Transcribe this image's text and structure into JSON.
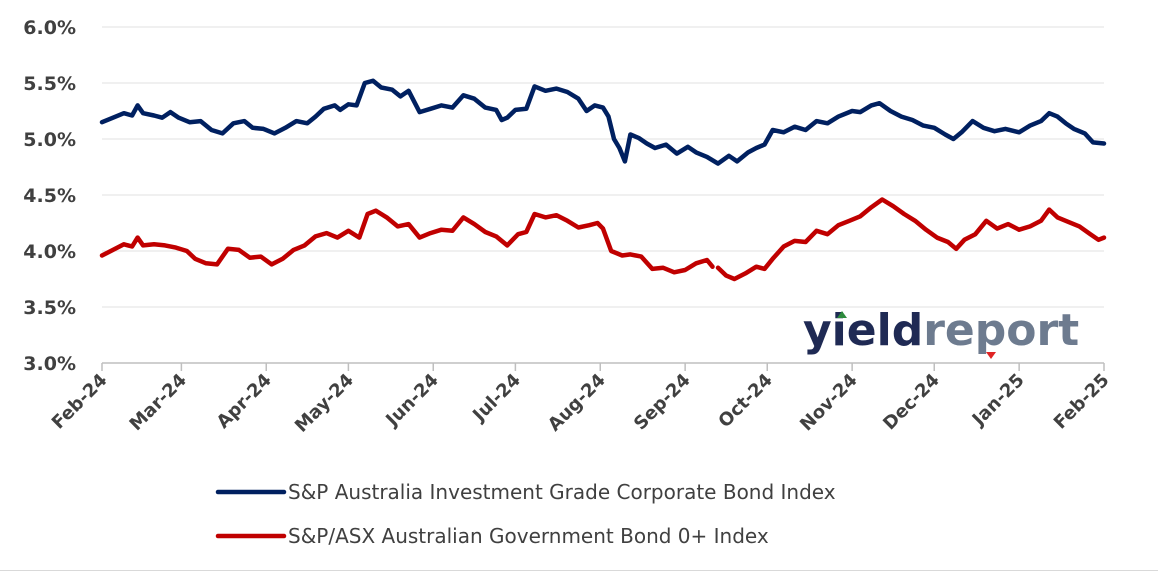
{
  "chart_data": {
    "type": "line",
    "title": "",
    "xlabel": "",
    "ylabel": "",
    "ylim": [
      3.0,
      6.0
    ],
    "y_ticks": [
      "6.0%",
      "5.5%",
      "5.0%",
      "4.5%",
      "4.0%",
      "3.5%",
      "3.0%"
    ],
    "y_tick_values": [
      6.0,
      5.5,
      5.0,
      4.5,
      4.0,
      3.5,
      3.0
    ],
    "x_ticks": [
      "Feb-24",
      "Mar-24",
      "Apr-24",
      "May-24",
      "Jun-24",
      "Jul-24",
      "Aug-24",
      "Sep-24",
      "Oct-24",
      "Nov-24",
      "Dec-24",
      "Jan-25",
      "Feb-25"
    ],
    "x_tick_dates": [
      "2024-02-01",
      "2024-03-01",
      "2024-04-01",
      "2024-05-01",
      "2024-06-01",
      "2024-07-01",
      "2024-08-01",
      "2024-09-01",
      "2024-10-01",
      "2024-11-01",
      "2024-12-01",
      "2025-01-01",
      "2025-02-01"
    ],
    "xlim": [
      "2024-02-01",
      "2025-02-01"
    ],
    "grid": "horizontal",
    "legend_position": "bottom",
    "series": [
      {
        "name": "S&P Australia Investment Grade Corporate Bond Index",
        "color": "#002060",
        "points": [
          [
            "2024-02-01",
            5.15
          ],
          [
            "2024-02-05",
            5.19
          ],
          [
            "2024-02-09",
            5.23
          ],
          [
            "2024-02-12",
            5.21
          ],
          [
            "2024-02-14",
            5.3
          ],
          [
            "2024-02-16",
            5.23
          ],
          [
            "2024-02-20",
            5.21
          ],
          [
            "2024-02-23",
            5.19
          ],
          [
            "2024-02-26",
            5.24
          ],
          [
            "2024-02-29",
            5.19
          ],
          [
            "2024-03-04",
            5.15
          ],
          [
            "2024-03-08",
            5.16
          ],
          [
            "2024-03-12",
            5.08
          ],
          [
            "2024-03-16",
            5.05
          ],
          [
            "2024-03-20",
            5.14
          ],
          [
            "2024-03-24",
            5.16
          ],
          [
            "2024-03-27",
            5.1
          ],
          [
            "2024-03-31",
            5.09
          ],
          [
            "2024-04-04",
            5.05
          ],
          [
            "2024-04-08",
            5.1
          ],
          [
            "2024-04-12",
            5.16
          ],
          [
            "2024-04-16",
            5.14
          ],
          [
            "2024-04-19",
            5.2
          ],
          [
            "2024-04-22",
            5.27
          ],
          [
            "2024-04-26",
            5.3
          ],
          [
            "2024-04-28",
            5.26
          ],
          [
            "2024-05-01",
            5.31
          ],
          [
            "2024-05-04",
            5.3
          ],
          [
            "2024-05-07",
            5.5
          ],
          [
            "2024-05-10",
            5.52
          ],
          [
            "2024-05-13",
            5.46
          ],
          [
            "2024-05-17",
            5.44
          ],
          [
            "2024-05-20",
            5.38
          ],
          [
            "2024-05-23",
            5.43
          ],
          [
            "2024-05-27",
            5.24
          ],
          [
            "2024-05-31",
            5.27
          ],
          [
            "2024-06-04",
            5.3
          ],
          [
            "2024-06-08",
            5.28
          ],
          [
            "2024-06-12",
            5.39
          ],
          [
            "2024-06-16",
            5.36
          ],
          [
            "2024-06-20",
            5.28
          ],
          [
            "2024-06-24",
            5.26
          ],
          [
            "2024-06-26",
            5.17
          ],
          [
            "2024-06-28",
            5.19
          ],
          [
            "2024-07-01",
            5.26
          ],
          [
            "2024-07-05",
            5.27
          ],
          [
            "2024-07-08",
            5.47
          ],
          [
            "2024-07-12",
            5.43
          ],
          [
            "2024-07-16",
            5.45
          ],
          [
            "2024-07-20",
            5.42
          ],
          [
            "2024-07-24",
            5.36
          ],
          [
            "2024-07-27",
            5.25
          ],
          [
            "2024-07-30",
            5.3
          ],
          [
            "2024-08-02",
            5.28
          ],
          [
            "2024-08-04",
            5.2
          ],
          [
            "2024-08-06",
            5.0
          ],
          [
            "2024-08-08",
            4.92
          ],
          [
            "2024-08-10",
            4.8
          ],
          [
            "2024-08-12",
            5.04
          ],
          [
            "2024-08-15",
            5.01
          ],
          [
            "2024-08-18",
            4.96
          ],
          [
            "2024-08-21",
            4.92
          ],
          [
            "2024-08-25",
            4.95
          ],
          [
            "2024-08-29",
            4.87
          ],
          [
            "2024-09-02",
            4.93
          ],
          [
            "2024-09-05",
            4.88
          ],
          [
            "2024-09-09",
            4.84
          ],
          [
            "2024-09-13",
            4.78
          ],
          [
            "2024-09-17",
            4.85
          ],
          [
            "2024-09-20",
            4.8
          ],
          [
            "2024-09-24",
            4.88
          ],
          [
            "2024-09-27",
            4.92
          ],
          [
            "2024-09-30",
            4.95
          ],
          [
            "2024-10-03",
            5.08
          ],
          [
            "2024-10-07",
            5.06
          ],
          [
            "2024-10-11",
            5.11
          ],
          [
            "2024-10-15",
            5.08
          ],
          [
            "2024-10-19",
            5.16
          ],
          [
            "2024-10-23",
            5.14
          ],
          [
            "2024-10-27",
            5.2
          ],
          [
            "2024-11-01",
            5.25
          ],
          [
            "2024-11-04",
            5.24
          ],
          [
            "2024-11-08",
            5.3
          ],
          [
            "2024-11-11",
            5.32
          ],
          [
            "2024-11-15",
            5.25
          ],
          [
            "2024-11-19",
            5.2
          ],
          [
            "2024-11-23",
            5.17
          ],
          [
            "2024-11-27",
            5.12
          ],
          [
            "2024-12-01",
            5.1
          ],
          [
            "2024-12-05",
            5.04
          ],
          [
            "2024-12-08",
            5.0
          ],
          [
            "2024-12-11",
            5.06
          ],
          [
            "2024-12-15",
            5.16
          ],
          [
            "2024-12-19",
            5.1
          ],
          [
            "2024-12-23",
            5.07
          ],
          [
            "2024-12-27",
            5.09
          ],
          [
            "2025-01-01",
            5.06
          ],
          [
            "2025-01-05",
            5.12
          ],
          [
            "2025-01-09",
            5.16
          ],
          [
            "2025-01-12",
            5.23
          ],
          [
            "2025-01-15",
            5.2
          ],
          [
            "2025-01-18",
            5.14
          ],
          [
            "2025-01-21",
            5.09
          ],
          [
            "2025-01-25",
            5.05
          ],
          [
            "2025-01-28",
            4.97
          ],
          [
            "2025-02-01",
            4.96
          ]
        ]
      },
      {
        "name": "S&P/ASX Australian Government Bond 0+ Index",
        "color": "#c00000",
        "points": [
          [
            "2024-02-01",
            3.96
          ],
          [
            "2024-02-05",
            4.01
          ],
          [
            "2024-02-09",
            4.06
          ],
          [
            "2024-02-12",
            4.04
          ],
          [
            "2024-02-14",
            4.12
          ],
          [
            "2024-02-16",
            4.05
          ],
          [
            "2024-02-20",
            4.06
          ],
          [
            "2024-02-24",
            4.05
          ],
          [
            "2024-02-28",
            4.03
          ],
          [
            "2024-03-03",
            4.0
          ],
          [
            "2024-03-06",
            3.93
          ],
          [
            "2024-03-10",
            3.89
          ],
          [
            "2024-03-14",
            3.88
          ],
          [
            "2024-03-18",
            4.02
          ],
          [
            "2024-03-22",
            4.01
          ],
          [
            "2024-03-26",
            3.94
          ],
          [
            "2024-03-30",
            3.95
          ],
          [
            "2024-04-03",
            3.88
          ],
          [
            "2024-04-07",
            3.93
          ],
          [
            "2024-04-11",
            4.01
          ],
          [
            "2024-04-15",
            4.05
          ],
          [
            "2024-04-19",
            4.13
          ],
          [
            "2024-04-23",
            4.16
          ],
          [
            "2024-04-27",
            4.12
          ],
          [
            "2024-05-01",
            4.18
          ],
          [
            "2024-05-05",
            4.12
          ],
          [
            "2024-05-08",
            4.33
          ],
          [
            "2024-05-11",
            4.36
          ],
          [
            "2024-05-15",
            4.3
          ],
          [
            "2024-05-19",
            4.22
          ],
          [
            "2024-05-23",
            4.24
          ],
          [
            "2024-05-27",
            4.12
          ],
          [
            "2024-05-31",
            4.16
          ],
          [
            "2024-06-04",
            4.19
          ],
          [
            "2024-06-08",
            4.18
          ],
          [
            "2024-06-12",
            4.3
          ],
          [
            "2024-06-16",
            4.24
          ],
          [
            "2024-06-20",
            4.17
          ],
          [
            "2024-06-24",
            4.13
          ],
          [
            "2024-06-28",
            4.05
          ],
          [
            "2024-07-02",
            4.15
          ],
          [
            "2024-07-05",
            4.17
          ],
          [
            "2024-07-08",
            4.33
          ],
          [
            "2024-07-12",
            4.3
          ],
          [
            "2024-07-16",
            4.32
          ],
          [
            "2024-07-20",
            4.27
          ],
          [
            "2024-07-24",
            4.21
          ],
          [
            "2024-07-28",
            4.23
          ],
          [
            "2024-07-31",
            4.25
          ],
          [
            "2024-08-02",
            4.2
          ],
          [
            "2024-08-05",
            4.0
          ],
          [
            "2024-08-09",
            3.96
          ],
          [
            "2024-08-12",
            3.97
          ],
          [
            "2024-08-16",
            3.95
          ],
          [
            "2024-08-20",
            3.84
          ],
          [
            "2024-08-24",
            3.85
          ],
          [
            "2024-08-28",
            3.81
          ],
          [
            "2024-09-01",
            3.83
          ],
          [
            "2024-09-05",
            3.89
          ],
          [
            "2024-09-09",
            3.92
          ],
          [
            "2024-09-11",
            3.86
          ]
        ]
      },
      {
        "name": "",
        "legend": false,
        "color": "#c00000",
        "points": [
          [
            "2024-09-13",
            3.85
          ],
          [
            "2024-09-16",
            3.78
          ],
          [
            "2024-09-19",
            3.75
          ],
          [
            "2024-09-23",
            3.8
          ],
          [
            "2024-09-27",
            3.86
          ],
          [
            "2024-09-30",
            3.84
          ],
          [
            "2024-10-03",
            3.93
          ],
          [
            "2024-10-07",
            4.04
          ],
          [
            "2024-10-11",
            4.09
          ],
          [
            "2024-10-15",
            4.08
          ],
          [
            "2024-10-19",
            4.18
          ],
          [
            "2024-10-23",
            4.15
          ],
          [
            "2024-10-27",
            4.23
          ],
          [
            "2024-10-31",
            4.27
          ],
          [
            "2024-11-04",
            4.31
          ],
          [
            "2024-11-08",
            4.39
          ],
          [
            "2024-11-12",
            4.46
          ],
          [
            "2024-11-16",
            4.4
          ],
          [
            "2024-11-20",
            4.33
          ],
          [
            "2024-11-24",
            4.27
          ],
          [
            "2024-11-28",
            4.19
          ],
          [
            "2024-12-02",
            4.12
          ],
          [
            "2024-12-06",
            4.08
          ],
          [
            "2024-12-09",
            4.02
          ],
          [
            "2024-12-12",
            4.1
          ],
          [
            "2024-12-16",
            4.15
          ],
          [
            "2024-12-20",
            4.27
          ],
          [
            "2024-12-24",
            4.2
          ],
          [
            "2024-12-28",
            4.24
          ],
          [
            "2025-01-01",
            4.19
          ],
          [
            "2025-01-05",
            4.22
          ],
          [
            "2025-01-09",
            4.27
          ],
          [
            "2025-01-12",
            4.37
          ],
          [
            "2025-01-15",
            4.3
          ],
          [
            "2025-01-19",
            4.26
          ],
          [
            "2025-01-23",
            4.22
          ],
          [
            "2025-01-27",
            4.15
          ],
          [
            "2025-01-30",
            4.1
          ],
          [
            "2025-02-01",
            4.12
          ]
        ]
      }
    ]
  },
  "logo": {
    "text_part1": "yield",
    "text_part2": "report",
    "color1": "#1f2a54",
    "color2": "#6d7b8f",
    "accent_up": "#2e8b3e",
    "accent_down": "#e02424"
  }
}
